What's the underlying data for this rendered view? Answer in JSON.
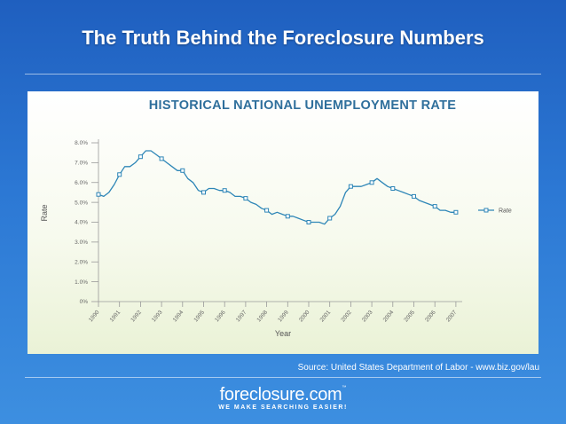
{
  "slide": {
    "title": "The Truth Behind the Foreclosure Numbers",
    "source": "Source: United States Department of Labor - www.biz.gov/lau"
  },
  "logo": {
    "name": "foreclosure.com",
    "tm": "™",
    "tagline": "WE MAKE SEARCHING EASIER!"
  },
  "colors": {
    "background": "#2c78d4",
    "line": "#2e86b7",
    "title": "#2f6f9c"
  },
  "chart_data": {
    "type": "line",
    "title": "HISTORICAL NATIONAL UNEMPLOYMENT RATE",
    "xlabel": "Year",
    "ylabel": "Rate",
    "x_tick_labels": [
      "1990",
      "1991",
      "1992",
      "1993",
      "1994",
      "1995",
      "1996",
      "1997",
      "1998",
      "1999",
      "2000",
      "2001",
      "2002",
      "2003",
      "2004",
      "2005",
      "2006",
      "2007"
    ],
    "y_tick_labels": [
      "0%",
      "1.0%",
      "2.0%",
      "3.0%",
      "4.0%",
      "5.0%",
      "6.0%",
      "7.0%",
      "8.0%"
    ],
    "xlim": [
      1990,
      2007.3
    ],
    "ylim": [
      0,
      8
    ],
    "grid": false,
    "legend": "right",
    "series": [
      {
        "name": "Rate",
        "x": [
          1990.0,
          1990.25,
          1990.5,
          1990.75,
          1991.0,
          1991.25,
          1991.5,
          1991.75,
          1992.0,
          1992.25,
          1992.5,
          1992.75,
          1993.0,
          1993.25,
          1993.5,
          1993.75,
          1994.0,
          1994.25,
          1994.5,
          1994.75,
          1995.0,
          1995.25,
          1995.5,
          1995.75,
          1996.0,
          1996.25,
          1996.5,
          1996.75,
          1997.0,
          1997.25,
          1997.5,
          1997.75,
          1998.0,
          1998.25,
          1998.5,
          1998.75,
          1999.0,
          1999.25,
          1999.5,
          1999.75,
          2000.0,
          2000.25,
          2000.5,
          2000.75,
          2001.0,
          2001.25,
          2001.5,
          2001.75,
          2002.0,
          2002.25,
          2002.5,
          2002.75,
          2003.0,
          2003.25,
          2003.5,
          2003.75,
          2004.0,
          2004.25,
          2004.5,
          2004.75,
          2005.0,
          2005.25,
          2005.5,
          2005.75,
          2006.0,
          2006.25,
          2006.5,
          2006.75,
          2007.0
        ],
        "values": [
          5.4,
          5.3,
          5.5,
          5.9,
          6.4,
          6.8,
          6.8,
          7.0,
          7.3,
          7.6,
          7.6,
          7.4,
          7.2,
          7.0,
          6.8,
          6.6,
          6.6,
          6.2,
          6.0,
          5.6,
          5.5,
          5.7,
          5.7,
          5.6,
          5.6,
          5.5,
          5.3,
          5.3,
          5.2,
          5.0,
          4.9,
          4.7,
          4.6,
          4.4,
          4.5,
          4.4,
          4.3,
          4.3,
          4.2,
          4.1,
          4.0,
          4.0,
          4.0,
          3.9,
          4.2,
          4.4,
          4.8,
          5.5,
          5.8,
          5.8,
          5.8,
          5.9,
          6.0,
          6.2,
          6.0,
          5.8,
          5.7,
          5.6,
          5.5,
          5.4,
          5.3,
          5.1,
          5.0,
          4.9,
          4.8,
          4.6,
          4.6,
          4.5,
          4.5
        ],
        "marker_x": [
          1990.0,
          1991.0,
          1992.0,
          1993.0,
          1994.0,
          1995.0,
          1996.0,
          1997.0,
          1998.0,
          1999.0,
          2000.0,
          2001.0,
          2002.0,
          2003.0,
          2004.0,
          2005.0,
          2006.0,
          2007.0
        ],
        "marker_values": [
          5.4,
          6.4,
          7.3,
          7.2,
          6.6,
          5.5,
          5.6,
          5.2,
          4.6,
          4.3,
          4.0,
          4.2,
          5.8,
          6.0,
          5.7,
          5.3,
          4.8,
          4.5
        ]
      }
    ]
  }
}
